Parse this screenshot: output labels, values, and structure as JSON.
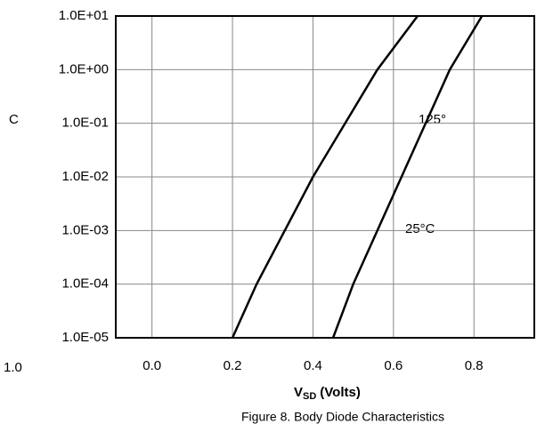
{
  "chart_data": {
    "type": "line",
    "xlabel": "V",
    "xlabel_sub": "SD",
    "xlabel_unit": "(Volts)",
    "caption": "Figure 8. Body Diode Characteristics",
    "annotations": [
      "125°",
      "25°C",
      "C",
      "1.0"
    ],
    "log_y": true,
    "grid": true,
    "xlim": [
      -0.09,
      0.95
    ],
    "xticks": [
      {
        "value": 0,
        "label": "0.0"
      },
      0.2,
      0.4,
      0.6,
      0.8
    ],
    "ylim": [
      1e-05,
      10
    ],
    "yticks": [
      {
        "value": 10,
        "label": "1.0E+01"
      },
      {
        "value": 1,
        "label": "1.0E+00"
      },
      {
        "value": 0.1,
        "label": "1.0E-01"
      },
      {
        "value": 0.01,
        "label": "1.0E-02"
      },
      {
        "value": 0.001,
        "label": "1.0E-03"
      },
      {
        "value": 0.0001,
        "label": "1.0E-04"
      },
      {
        "value": 1e-05,
        "label": "1.0E-05"
      }
    ],
    "series": [
      {
        "name": "125°",
        "color": "#000000",
        "x": [
          0.2,
          0.26,
          0.33,
          0.4,
          0.48,
          0.56,
          0.66
        ],
        "values": [
          1e-05,
          0.0001,
          0.001,
          0.01,
          0.1,
          1,
          10
        ]
      },
      {
        "name": "25°C",
        "color": "#000000",
        "x": [
          0.45,
          0.5,
          0.56,
          0.62,
          0.68,
          0.74,
          0.82
        ],
        "values": [
          1e-05,
          0.0001,
          0.001,
          0.01,
          0.1,
          1,
          10
        ]
      }
    ]
  }
}
